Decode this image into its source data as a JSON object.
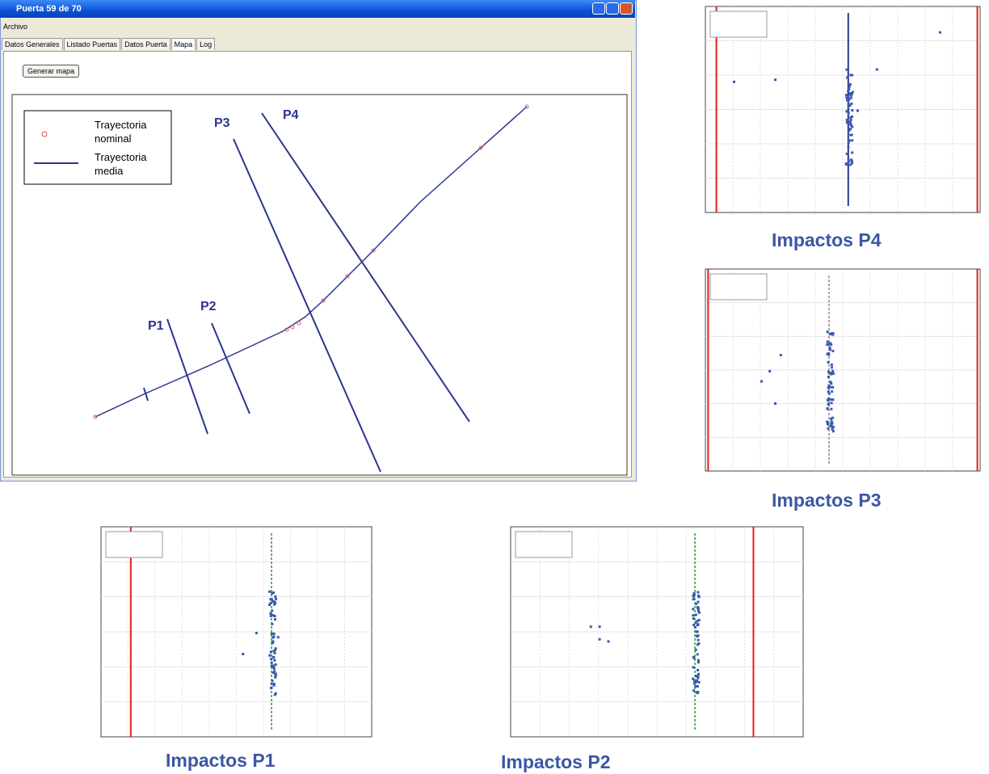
{
  "window": {
    "title": "Puerta 59 de 70",
    "menu": [
      "Archivo"
    ],
    "tabs": [
      "Datos Generales",
      "Listado Puertas",
      "Datos Puerta",
      "Mapa",
      "Log"
    ],
    "button": "Generar mapa"
  },
  "map": {
    "legend": [
      "Trayectoria nominal",
      "Trayectoria media"
    ],
    "planes": [
      "P1",
      "P2",
      "P3",
      "P4"
    ]
  },
  "captions": [
    "Impactos P4",
    "Impactos P3",
    "Impactos P1",
    "Impactos P2"
  ]
}
